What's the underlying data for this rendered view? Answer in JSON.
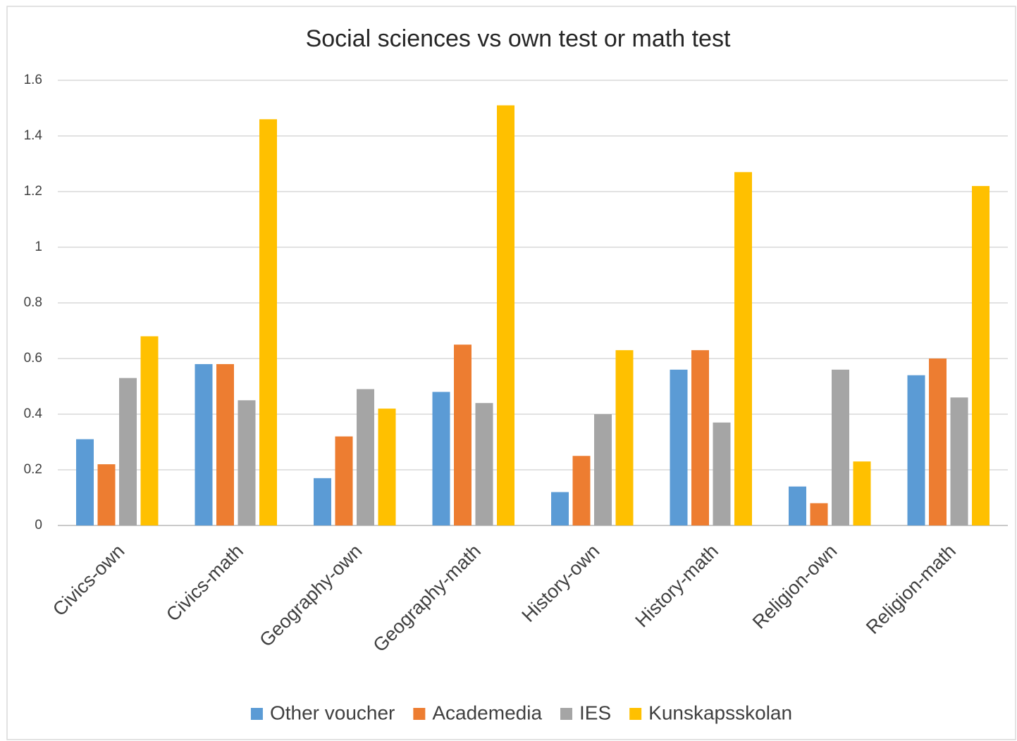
{
  "chart_data": {
    "type": "bar",
    "title": "Social sciences vs own test or math test",
    "categories": [
      "Civics-own",
      "Civics-math",
      "Geography-own",
      "Geography-math",
      "History-own",
      "History-math",
      "Religion-own",
      "Religion-math"
    ],
    "series": [
      {
        "name": "Other voucher",
        "color": "#5b9bd5",
        "values": [
          0.31,
          0.58,
          0.17,
          0.48,
          0.12,
          0.56,
          0.14,
          0.54
        ]
      },
      {
        "name": "Academedia",
        "color": "#ed7d31",
        "values": [
          0.22,
          0.58,
          0.32,
          0.65,
          0.25,
          0.63,
          0.08,
          0.6
        ]
      },
      {
        "name": "IES",
        "color": "#a5a5a5",
        "values": [
          0.53,
          0.45,
          0.49,
          0.44,
          0.4,
          0.37,
          0.56,
          0.46
        ]
      },
      {
        "name": "Kunskapsskolan",
        "color": "#ffc000",
        "values": [
          0.68,
          1.46,
          0.42,
          1.51,
          0.63,
          1.27,
          0.23,
          1.22
        ]
      }
    ],
    "ylim": [
      0,
      1.6
    ],
    "yticks": [
      0,
      0.2,
      0.4,
      0.6,
      0.8,
      1,
      1.2,
      1.4,
      1.6
    ],
    "grid": true,
    "legend": "bottom"
  }
}
